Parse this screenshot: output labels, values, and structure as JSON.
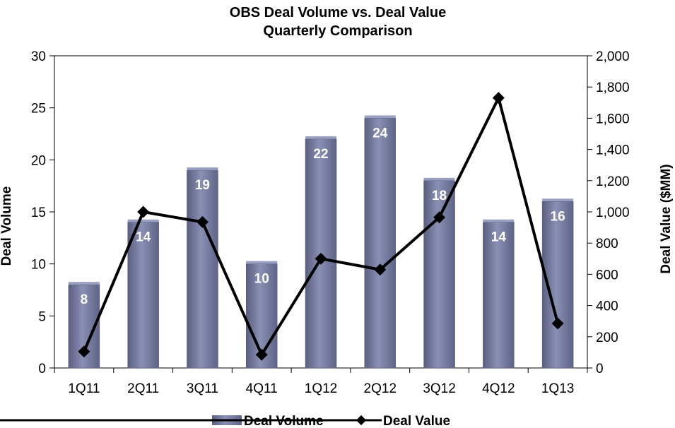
{
  "chart_data": {
    "type": "bar",
    "title": "OBS Deal Volume vs. Deal Value",
    "subtitle": "Quarterly Comparison",
    "categories": [
      "1Q11",
      "2Q11",
      "3Q11",
      "4Q11",
      "1Q12",
      "2Q12",
      "3Q12",
      "4Q12",
      "1Q13"
    ],
    "series": [
      {
        "name": "Deal Volume",
        "type": "bar",
        "axis": "left",
        "values": [
          8,
          14,
          19,
          10,
          22,
          24,
          18,
          14,
          16
        ]
      },
      {
        "name": "Deal Value",
        "type": "line",
        "axis": "right",
        "values": [
          105,
          1000,
          935,
          85,
          700,
          630,
          965,
          1730,
          285
        ]
      }
    ],
    "ylabel": "Deal Volume",
    "y2label": "Deal Value ($MM)",
    "ylim": [
      0,
      30
    ],
    "y2lim": [
      0,
      2000
    ],
    "yticks": [
      "0",
      "5",
      "10",
      "15",
      "20",
      "25",
      "30"
    ],
    "y2ticks": [
      "0",
      "200",
      "400",
      "600",
      "800",
      "1,000",
      "1,200",
      "1,400",
      "1,600",
      "1,800",
      "2,000"
    ],
    "grid": false,
    "legend": "bottom",
    "colors": {
      "bar": "#7b82a6",
      "bar_light": "#9aa0c2",
      "bar_dark": "#5a5f80",
      "line": "#000000"
    }
  }
}
